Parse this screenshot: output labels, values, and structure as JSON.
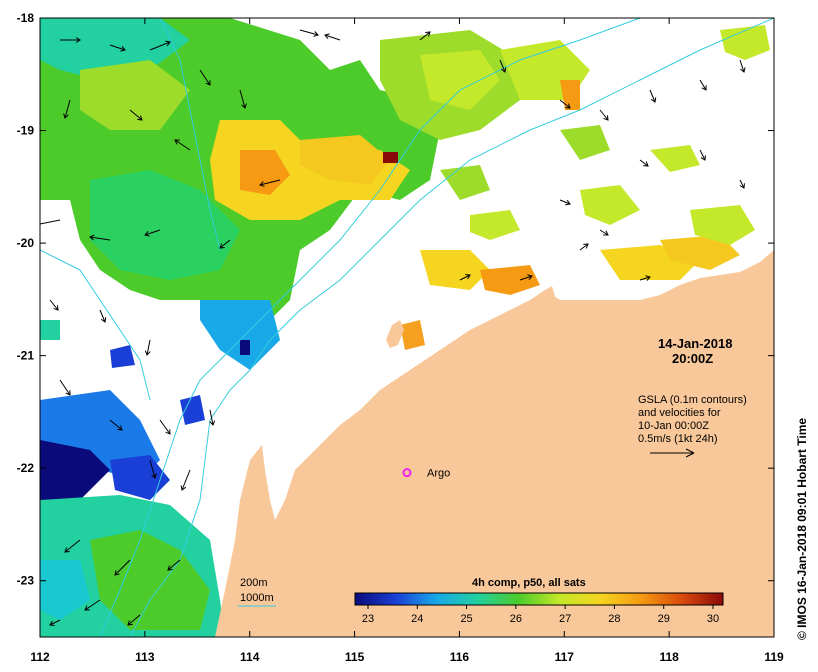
{
  "map": {
    "lon_ticks": [
      112,
      113,
      114,
      115,
      116,
      117,
      118,
      119
    ],
    "lat_ticks": [
      -18,
      -19,
      -20,
      -21,
      -22,
      -23
    ],
    "lon_range": [
      112,
      119
    ],
    "lat_range": [
      -18,
      -23.5
    ],
    "land_color": "#f9c89a",
    "contour_color": "#33ccdd",
    "timestamp_date": "14-Jan-2018",
    "timestamp_time": "20:00Z",
    "gsla_line1": "GSLA (0.1m contours)",
    "gsla_line2": "and velocities for",
    "gsla_line3": "10-Jan 00:00Z",
    "gsla_line4": "0.5m/s (1kt 24h)",
    "argo_label": "Argo",
    "argo_color": "#ee22ee",
    "argo_position": {
      "lon": 115.5,
      "lat": -22.04
    },
    "legend_200m": "200m",
    "legend_1000m": "1000m",
    "side_credit": "© IMOS 16-Jan-2018 09:01 Hobart Time"
  },
  "colorbar": {
    "title": "4h comp, p50, all sats",
    "ticks": [
      "23",
      "24",
      "25",
      "26",
      "27",
      "28",
      "29",
      "30"
    ],
    "stops": [
      "#0a0a7a",
      "#1a3fd6",
      "#19a9e8",
      "#22d0a0",
      "#4ccb2a",
      "#c4e82a",
      "#f5d520",
      "#f59a12",
      "#d94a0c",
      "#8a0a0a"
    ]
  }
}
